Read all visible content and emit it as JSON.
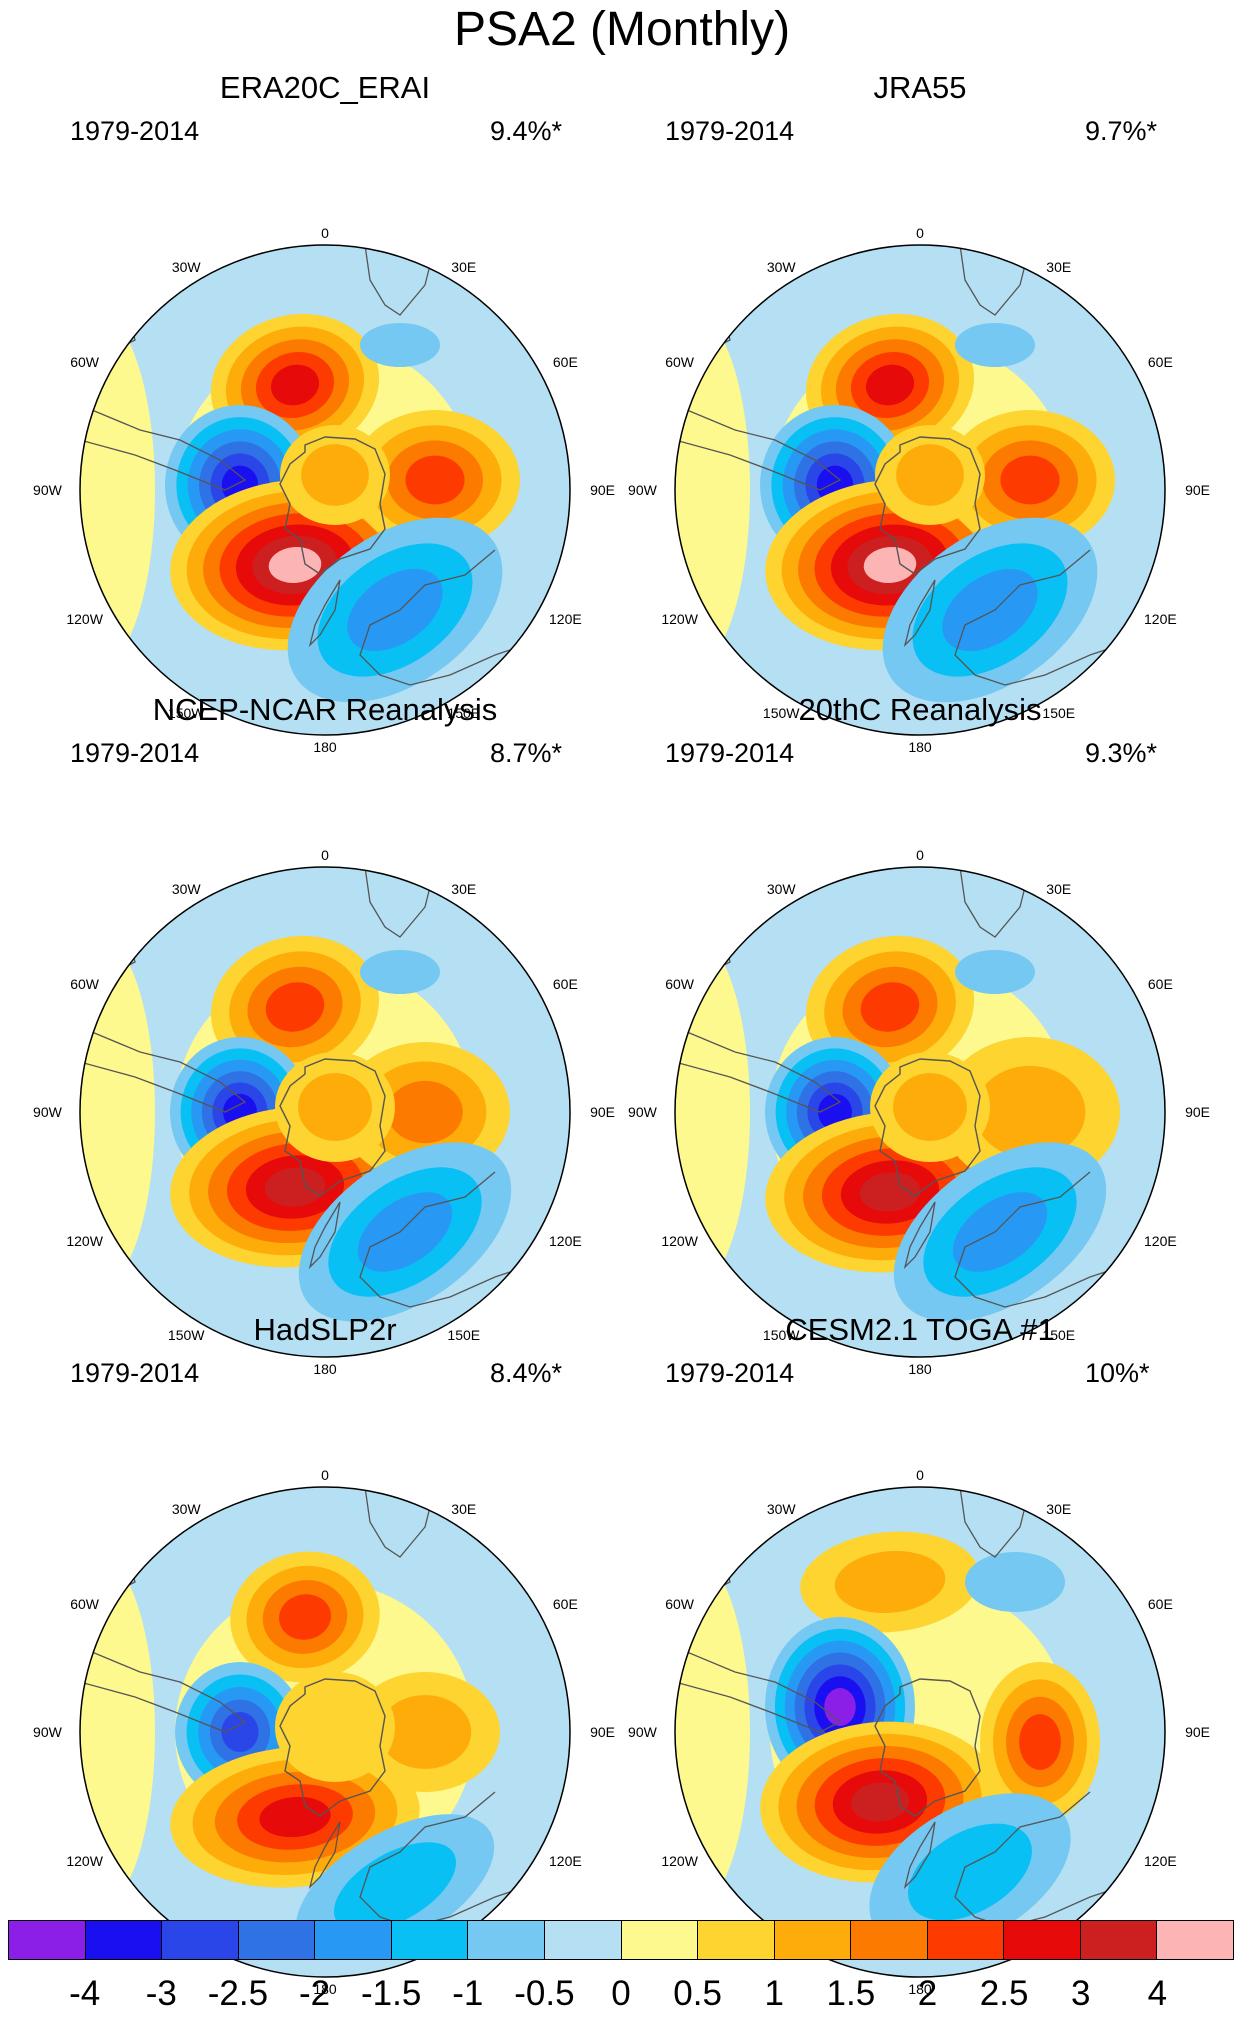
{
  "figure": {
    "title": "PSA2 (Monthly)"
  },
  "panels": [
    {
      "title": "ERA20C_ERAI",
      "period": "1979-2014",
      "variance": "9.4%*"
    },
    {
      "title": "JRA55",
      "period": "1979-2014",
      "variance": "9.7%*"
    },
    {
      "title": "NCEP-NCAR Reanalysis",
      "period": "1979-2014",
      "variance": "8.7%*"
    },
    {
      "title": "20thC Reanalysis",
      "period": "1979-2014",
      "variance": "9.3%*"
    },
    {
      "title": "HadSLP2r",
      "period": "1979-2014",
      "variance": "8.4%*"
    },
    {
      "title": "CESM2.1 TOGA #1",
      "period": "1979-2014",
      "variance": "10%*"
    }
  ],
  "longitude_labels": [
    "0",
    "30E",
    "60E",
    "90E",
    "120E",
    "150E",
    "180",
    "150W",
    "120W",
    "90W",
    "60W",
    "30W"
  ],
  "colorbar": {
    "labels": [
      "-4",
      "-3",
      "-2.5",
      "-2",
      "-1.5",
      "-1",
      "-0.5",
      "0",
      "0.5",
      "1",
      "1.5",
      "2",
      "2.5",
      "3",
      "4"
    ],
    "colors": [
      "#8b1fe8",
      "#1a0ff0",
      "#2a45e8",
      "#2f72e6",
      "#2898f5",
      "#08c0f4",
      "#74c8f2",
      "#b5dff2",
      "#fdf98e",
      "#fdd430",
      "#fdac0a",
      "#fd7a00",
      "#fd3a00",
      "#e60a0a",
      "#cc2020",
      "#fdb4b4"
    ]
  }
}
